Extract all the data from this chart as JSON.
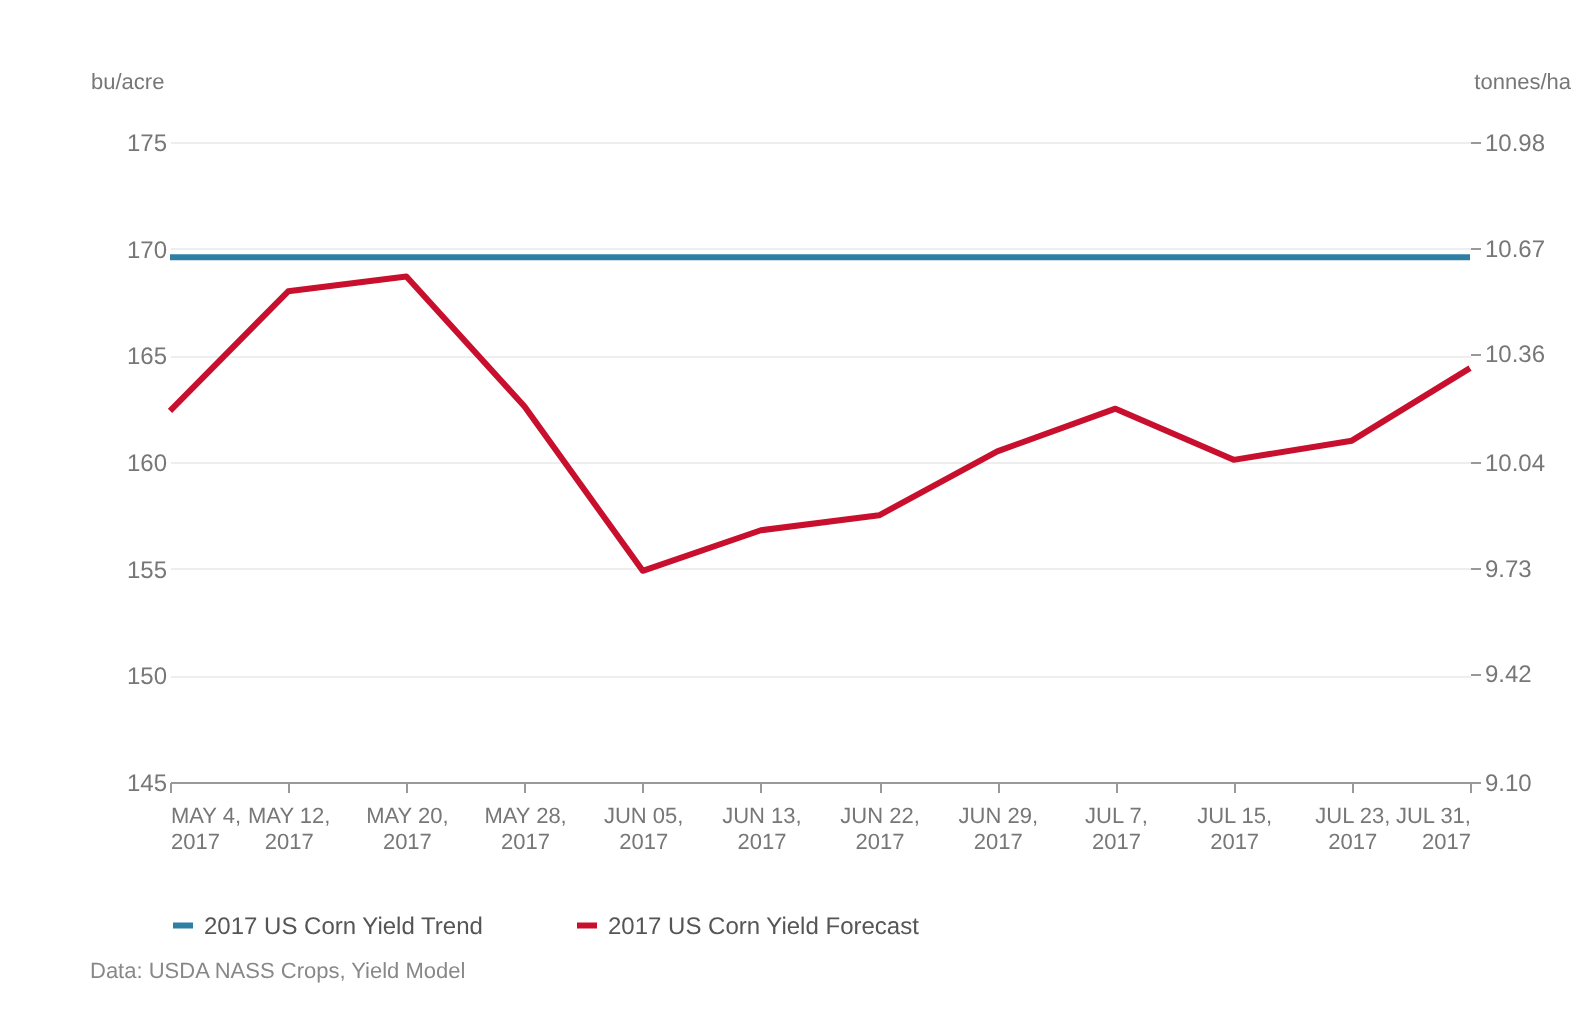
{
  "chart_data": {
    "type": "line",
    "categories": [
      "MAY 4, 2017",
      "MAY 12, 2017",
      "MAY 20, 2017",
      "MAY 28, 2017",
      "JUN 05, 2017",
      "JUN 13, 2017",
      "JUN 22, 2017",
      "JUN 29, 2017",
      "JUL 7, 2017",
      "JUL 15, 2017",
      "JUL 23, 2017",
      "JUL 31, 2017"
    ],
    "series": [
      {
        "name": "2017 US Corn Yield Trend",
        "color": "#2e7fa3",
        "values": [
          169.6,
          169.6,
          169.6,
          169.6,
          169.6,
          169.6,
          169.6,
          169.6,
          169.6,
          169.6,
          169.6,
          169.6
        ]
      },
      {
        "name": "2017 US Corn Yield Forecast",
        "color": "#c8102e",
        "values": [
          162.4,
          168.0,
          168.7,
          162.6,
          154.9,
          156.8,
          157.5,
          160.5,
          162.5,
          160.1,
          161.0,
          164.4
        ]
      }
    ],
    "ylabel": "bu/acre",
    "y2label": "tonnes/ha",
    "ylim": [
      145,
      175
    ],
    "yticks": [
      145,
      150,
      155,
      160,
      165,
      170,
      175
    ],
    "y2lim": [
      9.1,
      10.98
    ],
    "y2ticks": [
      {
        "value": 9.1,
        "label": "9.10"
      },
      9.42,
      9.73,
      10.04,
      10.36,
      10.67,
      10.98
    ],
    "grid": "y",
    "legend": "bottom",
    "line_style": "solid",
    "annotations": [
      "Data: USDA NASS Crops, Yield Model"
    ]
  }
}
